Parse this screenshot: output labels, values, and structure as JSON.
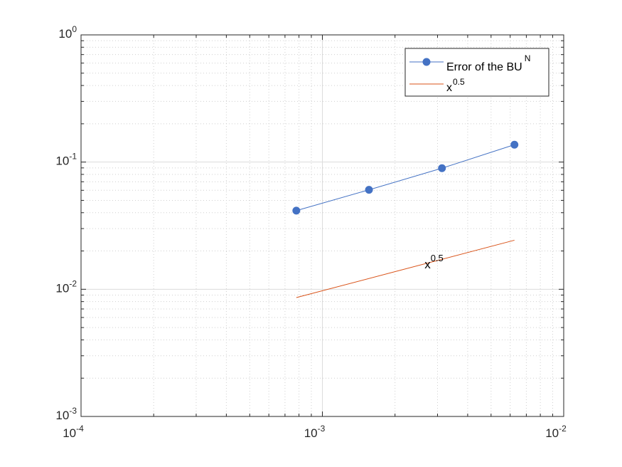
{
  "chart_data": {
    "type": "line",
    "x_scale": "log",
    "y_scale": "log",
    "xlim": [
      0.0001,
      0.01
    ],
    "ylim": [
      0.001,
      1
    ],
    "grid": true,
    "minor_grid": true,
    "legend_position": "top-right",
    "x_ticks": [
      {
        "value": 0.0001,
        "base": "10",
        "exp": "-4"
      },
      {
        "value": 0.001,
        "base": "10",
        "exp": "-3"
      },
      {
        "value": 0.01,
        "base": "10",
        "exp": "-2"
      }
    ],
    "y_ticks": [
      {
        "value": 0.001,
        "base": "10",
        "exp": "-3"
      },
      {
        "value": 0.01,
        "base": "10",
        "exp": "-2"
      },
      {
        "value": 0.1,
        "base": "10",
        "exp": "-1"
      },
      {
        "value": 1,
        "base": "10",
        "exp": "0"
      }
    ],
    "series": [
      {
        "name": "Error of the BU",
        "name_sup": "N",
        "color": "#4472C4",
        "marker": "circle",
        "x": [
          0.00078,
          0.00156,
          0.00313,
          0.00625
        ],
        "y": [
          0.0415,
          0.0605,
          0.0895,
          0.137
        ]
      },
      {
        "name": "x",
        "name_sup": "0.5",
        "color": "#D95319",
        "marker": "none",
        "x": [
          0.00078,
          0.00625
        ],
        "y": [
          0.0086,
          0.0243
        ]
      }
    ],
    "annotations": [
      {
        "text": "x",
        "sup": "0.5",
        "x": 0.00265,
        "y": 0.0158
      }
    ]
  }
}
